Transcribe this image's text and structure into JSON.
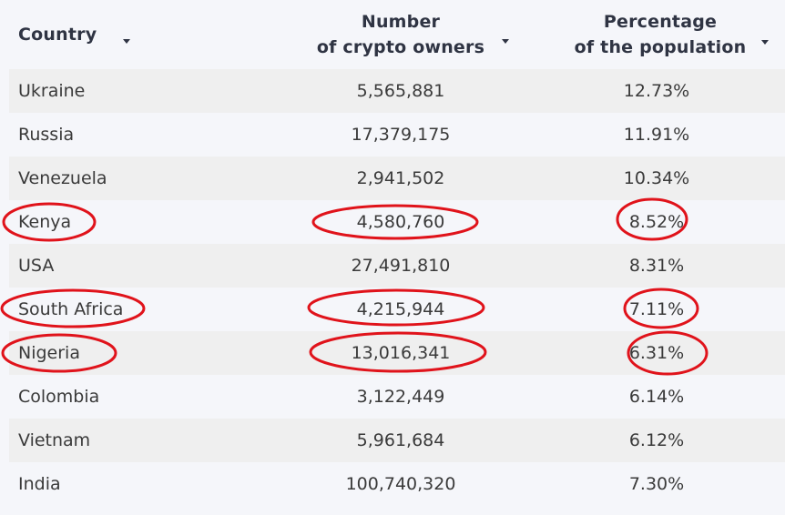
{
  "table": {
    "headers": {
      "country": "Country",
      "owners_line1": "Number",
      "owners_line2": "of crypto owners",
      "pct_line1": "Percentage",
      "pct_line2": "of the population"
    },
    "rows": [
      {
        "country": "Ukraine",
        "owners": "5,565,881",
        "pct": "12.73%"
      },
      {
        "country": "Russia",
        "owners": "17,379,175",
        "pct": "11.91%"
      },
      {
        "country": "Venezuela",
        "owners": "2,941,502",
        "pct": "10.34%"
      },
      {
        "country": "Kenya",
        "owners": "4,580,760",
        "pct": "8.52%"
      },
      {
        "country": "USA",
        "owners": "27,491,810",
        "pct": "8.31%"
      },
      {
        "country": "South Africa",
        "owners": "4,215,944",
        "pct": "7.11%"
      },
      {
        "country": "Nigeria",
        "owners": "13,016,341",
        "pct": "6.31%"
      },
      {
        "country": "Colombia",
        "owners": "3,122,449",
        "pct": "6.14%"
      },
      {
        "country": "Vietnam",
        "owners": "5,961,684",
        "pct": "6.12%"
      },
      {
        "country": "India",
        "owners": "100,740,320",
        "pct": "7.30%"
      }
    ]
  },
  "annotations": {
    "color": "#e0131b",
    "highlighted_rows": [
      "Kenya",
      "South Africa",
      "Nigeria"
    ]
  },
  "icons": {
    "sort": "sort-caret-down-icon"
  }
}
